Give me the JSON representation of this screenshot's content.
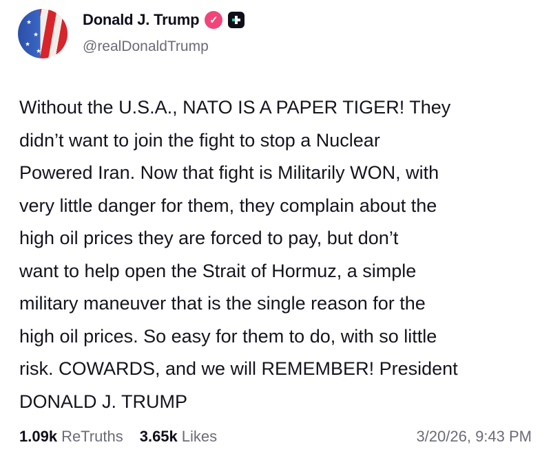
{
  "author": {
    "name": "Donald J. Trump",
    "handle": "@realDonaldTrump",
    "verified_color": "#f0457a",
    "avatar_icon": "flag-portrait-avatar"
  },
  "post": {
    "lines": [
      "Without the U.S.A., NATO IS A PAPER TIGER! They",
      "didn’t want to join the fight to stop a Nuclear",
      "Powered Iran. Now that fight is Militarily WON, with",
      "very little danger for them, they complain about the",
      "high oil prices they are forced to pay, but don’t",
      "want to help open the Strait of Hormuz, a simple",
      "military maneuver that is the single reason for the",
      "high oil prices. So easy for them to do, with so little",
      "risk. COWARDS, and we will REMEMBER! President",
      "DONALD J. TRUMP"
    ]
  },
  "stats": {
    "retruths_count": "1.09k",
    "retruths_label": "ReTruths",
    "likes_count": "3.65k",
    "likes_label": "Likes"
  },
  "timestamp": "3/20/26, 9:43 PM"
}
